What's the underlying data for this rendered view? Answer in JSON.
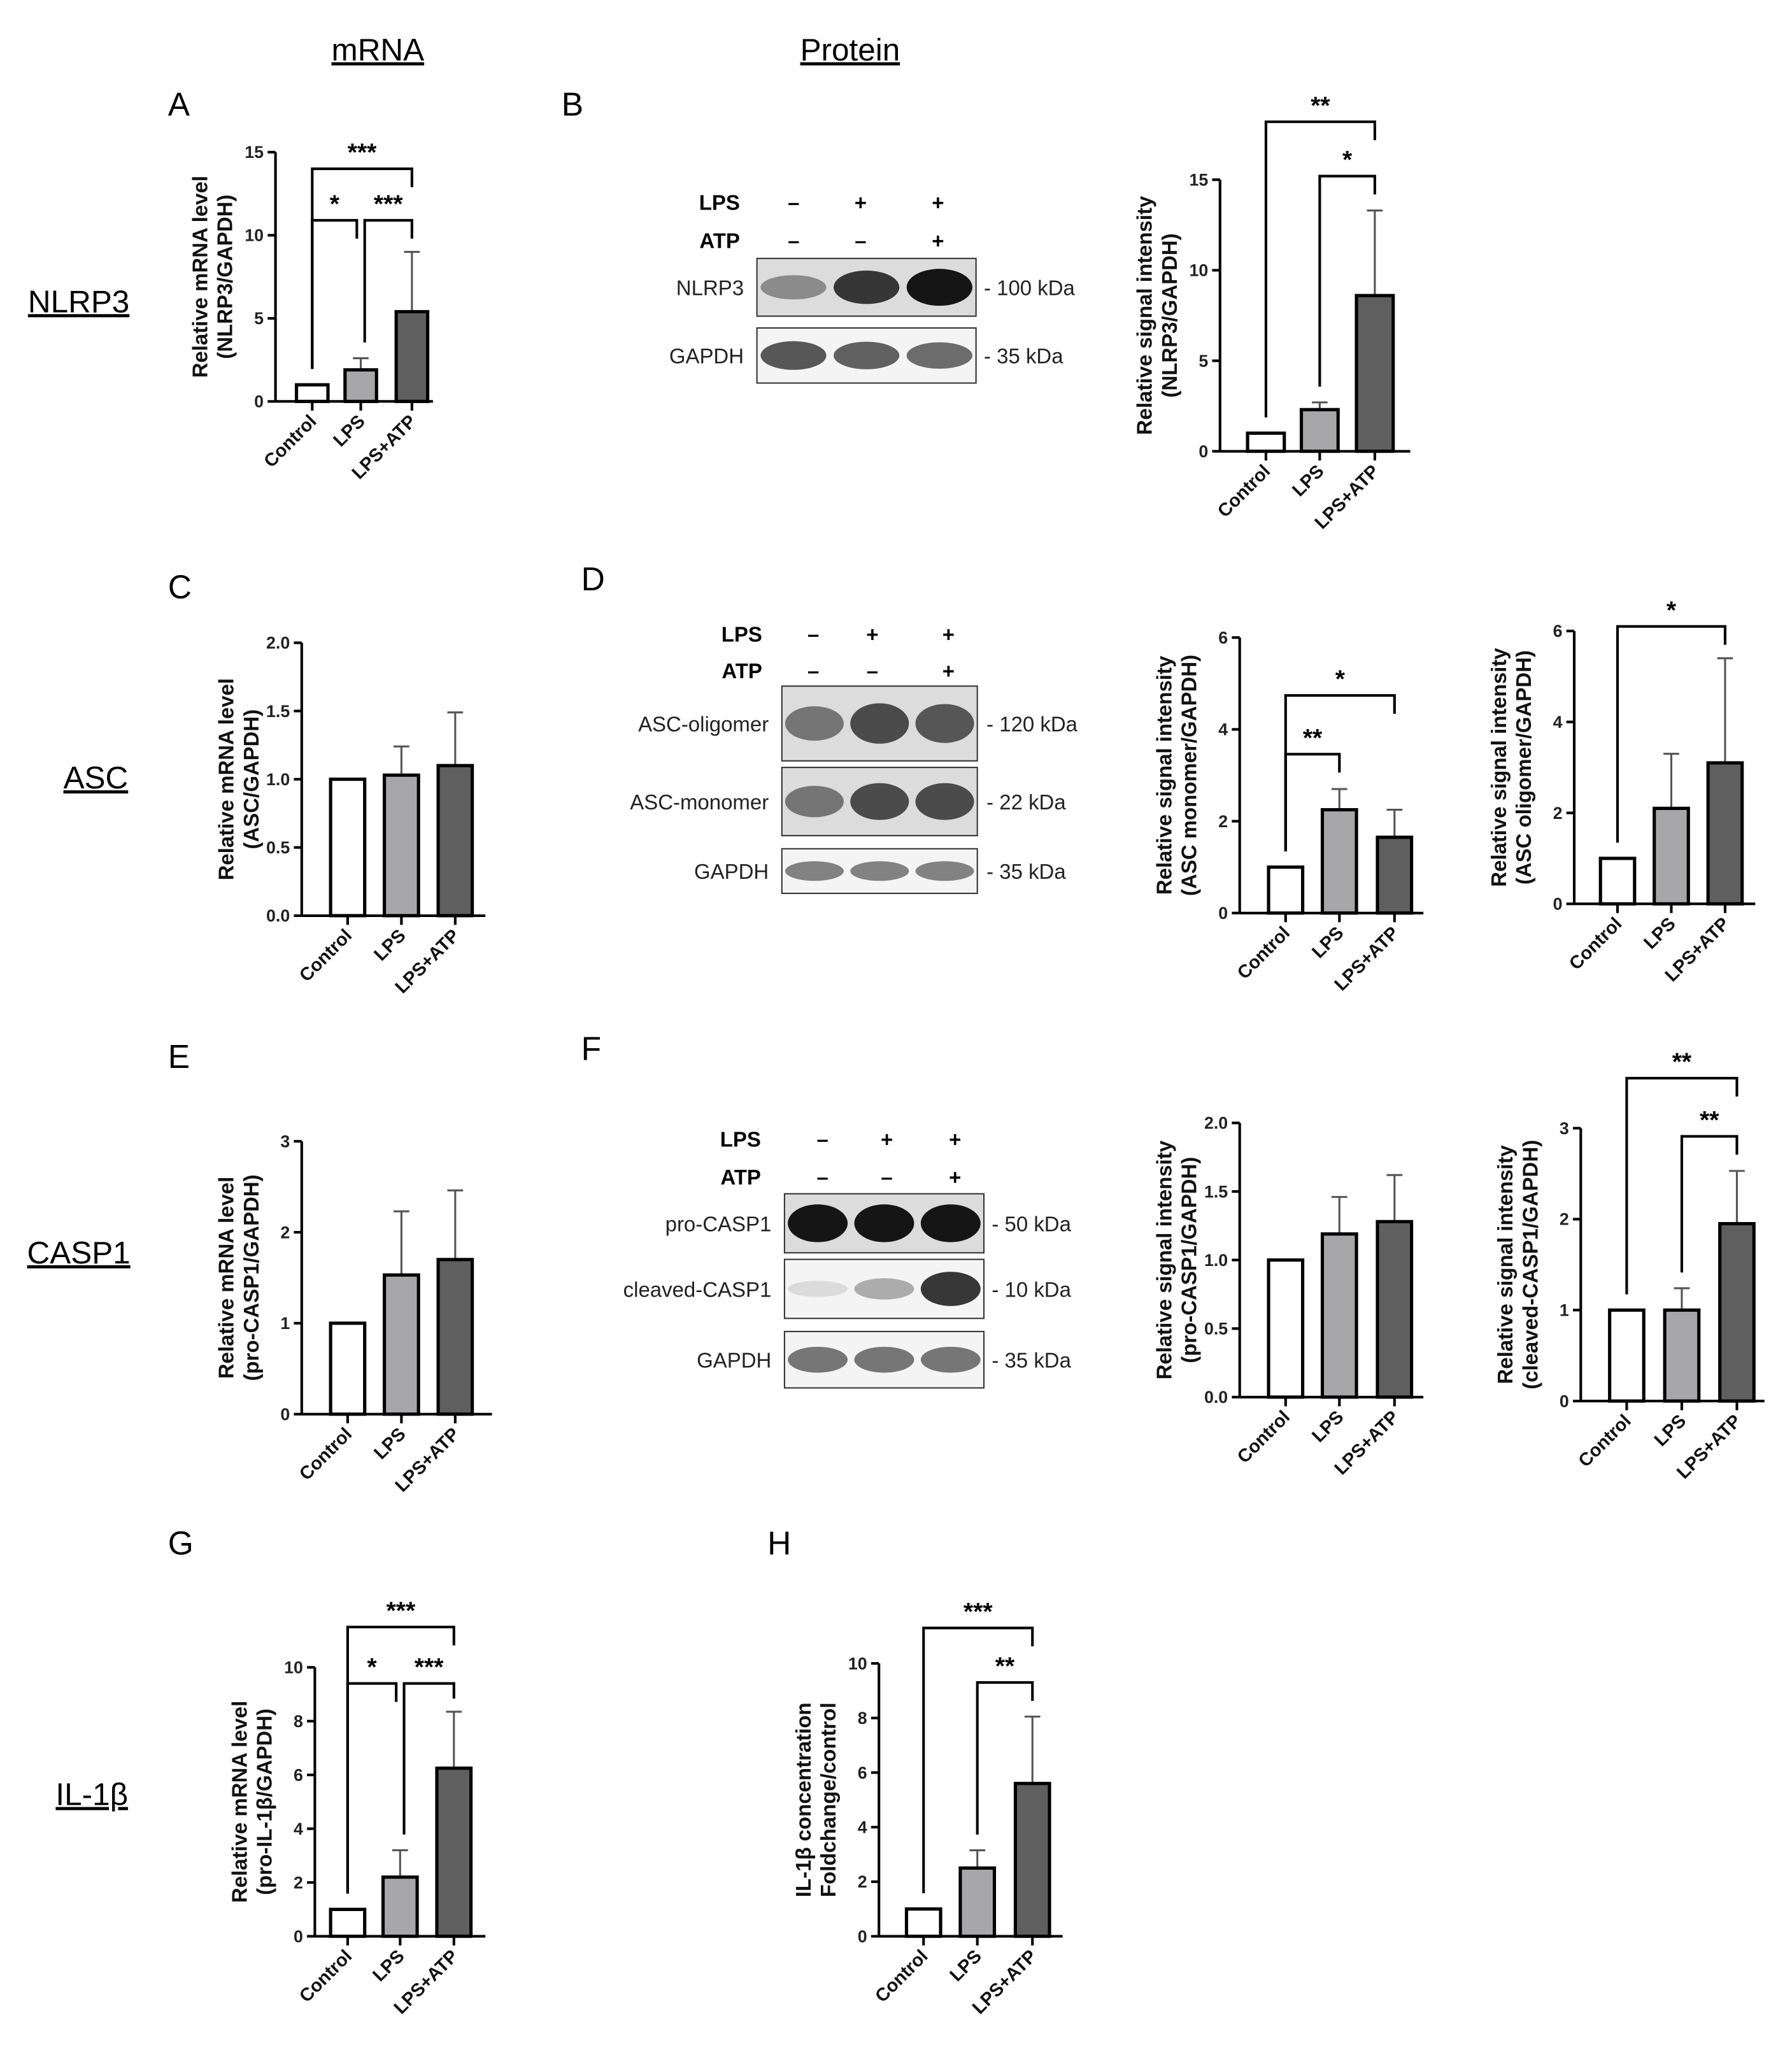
{
  "headers": {
    "mrna": "mRNA",
    "protein": "Protein"
  },
  "rows": {
    "nlrp3": "NLRP3",
    "asc": "ASC",
    "casp1": "CASP1",
    "il1b": "IL-1β"
  },
  "panels": {
    "A": "A",
    "B": "B",
    "C": "C",
    "D": "D",
    "E": "E",
    "F": "F",
    "G": "G",
    "H": "H"
  },
  "colors": {
    "control": "#ffffff",
    "lps": "#a7a7aa",
    "lps_atp": "#5f5f5f",
    "outline": "#000000",
    "error": "#555555"
  },
  "blots": [
    {
      "panel": "B",
      "treatments": [
        {
          "label": "LPS",
          "signs": [
            "–",
            "+",
            "+"
          ]
        },
        {
          "label": "ATP",
          "signs": [
            "–",
            "–",
            "+"
          ]
        }
      ],
      "rows": [
        {
          "label": "NLRP3",
          "kda": "- 100 kDa",
          "band_intensity": [
            0.45,
            0.85,
            1.0
          ]
        },
        {
          "label": "GAPDH",
          "kda": "-  35 kDa",
          "band_intensity": [
            0.7,
            0.65,
            0.6
          ]
        }
      ]
    },
    {
      "panel": "D",
      "treatments": [
        {
          "label": "LPS",
          "signs": [
            "–",
            "+",
            "+"
          ]
        },
        {
          "label": "ATP",
          "signs": [
            "–",
            "–",
            "+"
          ]
        }
      ],
      "rows": [
        {
          "label": "ASC-oligomer",
          "kda": "- 120 kDa",
          "band_intensity": [
            0.55,
            0.75,
            0.7
          ]
        },
        {
          "label": "ASC-monomer",
          "kda": "-  22 kDa",
          "band_intensity": [
            0.55,
            0.75,
            0.75
          ]
        },
        {
          "label": "GAPDH",
          "kda": "-  35 kDa",
          "band_intensity": [
            0.5,
            0.5,
            0.5
          ]
        }
      ]
    },
    {
      "panel": "F",
      "treatments": [
        {
          "label": "LPS",
          "signs": [
            "–",
            "+",
            "+"
          ]
        },
        {
          "label": "ATP",
          "signs": [
            "–",
            "–",
            "+"
          ]
        }
      ],
      "rows": [
        {
          "label": "pro-CASP1",
          "kda": "- 50 kDa",
          "band_intensity": [
            1.0,
            1.0,
            1.0
          ]
        },
        {
          "label": "cleaved-CASP1",
          "kda": "- 10 kDa",
          "band_intensity": [
            0.08,
            0.3,
            0.85
          ]
        },
        {
          "label": "GAPDH",
          "kda": "- 35 kDa",
          "band_intensity": [
            0.55,
            0.55,
            0.55
          ]
        }
      ]
    }
  ],
  "chart_data": [
    {
      "panel": "A",
      "type": "bar",
      "ylabel": [
        "Relative mRNA level",
        "(NLRP3/GAPDH)"
      ],
      "categories": [
        "Control",
        "LPS",
        "LPS+ATP"
      ],
      "values": [
        1,
        1.9,
        5.4
      ],
      "error_upper": [
        1,
        2.6,
        9.0
      ],
      "ylim": [
        0,
        15
      ],
      "yticks": [
        "0",
        "5",
        "10",
        "15"
      ],
      "significance": [
        {
          "from": 0,
          "to": 2,
          "y": 14.0,
          "label": "***"
        },
        {
          "from": 0,
          "to": 1,
          "y": 10.9,
          "label": "*"
        },
        {
          "from": 1,
          "to": 2,
          "y": 10.9,
          "label": "***"
        }
      ]
    },
    {
      "panel": "B",
      "type": "bar",
      "ylabel": [
        "Relative signal intensity",
        "(NLRP3/GAPDH)"
      ],
      "categories": [
        "Control",
        "LPS",
        "LPS+ATP"
      ],
      "values": [
        1,
        2.3,
        8.6
      ],
      "error_upper": [
        1,
        2.7,
        13.3
      ],
      "ylim": [
        0,
        15
      ],
      "yticks": [
        "0",
        "5",
        "10",
        "15"
      ],
      "significance": [
        {
          "from": 0,
          "to": 2,
          "y": 18.2,
          "label": "**"
        },
        {
          "from": 1,
          "to": 2,
          "y": 15.2,
          "label": "*"
        }
      ]
    },
    {
      "panel": "C",
      "type": "bar",
      "ylabel": [
        "Relative mRNA level",
        "(ASC/GAPDH)"
      ],
      "categories": [
        "Control",
        "LPS",
        "LPS+ATP"
      ],
      "values": [
        1,
        1.03,
        1.1
      ],
      "error_upper": [
        1,
        1.24,
        1.49
      ],
      "ylim": [
        0,
        2
      ],
      "yticks": [
        "0.0",
        "0.5",
        "1.0",
        "1.5",
        "2.0"
      ],
      "significance": []
    },
    {
      "panel": "D",
      "type": "bar",
      "ylabel": [
        "Relative signal intensity",
        "(ASC monomer/GAPDH)"
      ],
      "categories": [
        "Control",
        "LPS",
        "LPS+ATP"
      ],
      "values": [
        1,
        2.25,
        1.65
      ],
      "error_upper": [
        1,
        2.7,
        2.25
      ],
      "ylim": [
        0,
        6
      ],
      "yticks": [
        "0",
        "2",
        "4",
        "6"
      ],
      "significance": [
        {
          "from": 0,
          "to": 2,
          "y": 4.74,
          "label": "*"
        },
        {
          "from": 0,
          "to": 1,
          "y": 3.46,
          "label": "**"
        }
      ]
    },
    {
      "panel": "D",
      "type": "bar",
      "ylabel": [
        "Relative signal intensity",
        "(ASC oligomer/GAPDH)"
      ],
      "categories": [
        "Control",
        "LPS",
        "LPS+ATP"
      ],
      "values": [
        1,
        2.1,
        3.1
      ],
      "error_upper": [
        1,
        3.3,
        5.4
      ],
      "ylim": [
        0,
        6
      ],
      "yticks": [
        "0",
        "2",
        "4",
        "6"
      ],
      "significance": [
        {
          "from": 0,
          "to": 2,
          "y": 6.1,
          "label": "*"
        }
      ]
    },
    {
      "panel": "E",
      "type": "bar",
      "ylabel": [
        "Relative mRNA level",
        "(pro-CASP1/GAPDH)"
      ],
      "categories": [
        "Control",
        "LPS",
        "LPS+ATP"
      ],
      "values": [
        1,
        1.53,
        1.7
      ],
      "error_upper": [
        1,
        2.23,
        2.46
      ],
      "ylim": [
        0,
        3
      ],
      "yticks": [
        "0",
        "1",
        "2",
        "3"
      ],
      "significance": []
    },
    {
      "panel": "F",
      "type": "bar",
      "ylabel": [
        "Relative signal intensity",
        "(pro-CASP1/GAPDH)"
      ],
      "categories": [
        "Control",
        "LPS",
        "LPS+ATP"
      ],
      "values": [
        1,
        1.19,
        1.28
      ],
      "error_upper": [
        1,
        1.46,
        1.62
      ],
      "ylim": [
        0,
        2
      ],
      "yticks": [
        "0.0",
        "0.5",
        "1.0",
        "1.5",
        "2.0"
      ],
      "significance": []
    },
    {
      "panel": "F",
      "type": "bar",
      "ylabel": [
        "Relative signal intensity",
        "(cleaved-CASP1/GAPDH)"
      ],
      "categories": [
        "Control",
        "LPS",
        "LPS+ATP"
      ],
      "values": [
        1,
        1.0,
        1.95
      ],
      "error_upper": [
        1,
        1.24,
        2.53
      ],
      "ylim": [
        0,
        3
      ],
      "yticks": [
        "0",
        "1",
        "2",
        "3"
      ],
      "significance": [
        {
          "from": 0,
          "to": 2,
          "y": 3.55,
          "label": "**"
        },
        {
          "from": 1,
          "to": 2,
          "y": 2.91,
          "label": "**"
        }
      ]
    },
    {
      "panel": "G",
      "type": "bar",
      "ylabel": [
        "Relative mRNA level",
        "(pro-IL-1β/GAPDH)"
      ],
      "categories": [
        "Control",
        "LPS",
        "LPS+ATP"
      ],
      "values": [
        1,
        2.2,
        6.25
      ],
      "error_upper": [
        1,
        3.2,
        8.35
      ],
      "ylim": [
        0,
        10
      ],
      "yticks": [
        "0",
        "2",
        "4",
        "6",
        "8",
        "10"
      ],
      "significance": [
        {
          "from": 0,
          "to": 2,
          "y": 11.5,
          "label": "***"
        },
        {
          "from": 0,
          "to": 1,
          "y": 9.4,
          "label": "*"
        },
        {
          "from": 1,
          "to": 2,
          "y": 9.4,
          "label": "***"
        }
      ]
    },
    {
      "panel": "H",
      "type": "bar",
      "ylabel": [
        "IL-1β concentration",
        "Foldchange/control"
      ],
      "categories": [
        "Control",
        "LPS",
        "LPS+ATP"
      ],
      "values": [
        1,
        2.5,
        5.6
      ],
      "error_upper": [
        1,
        3.15,
        8.05
      ],
      "ylim": [
        0,
        10
      ],
      "yticks": [
        "0",
        "2",
        "4",
        "6",
        "8",
        "10"
      ],
      "significance": [
        {
          "from": 0,
          "to": 2,
          "y": 11.3,
          "label": "***"
        },
        {
          "from": 1,
          "to": 2,
          "y": 9.3,
          "label": "**"
        }
      ]
    }
  ]
}
